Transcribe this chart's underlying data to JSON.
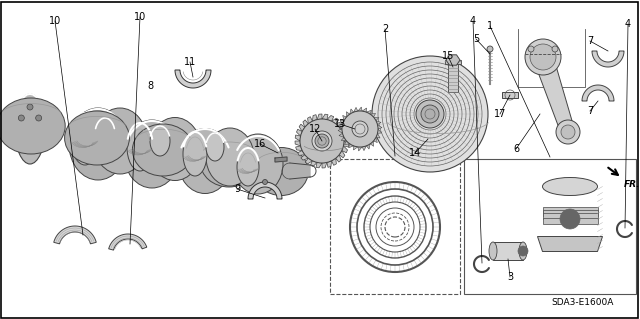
{
  "background_color": "#ffffff",
  "watermark": "SDA3-E1600A",
  "fr_label": "FR.",
  "image_b64": ""
}
